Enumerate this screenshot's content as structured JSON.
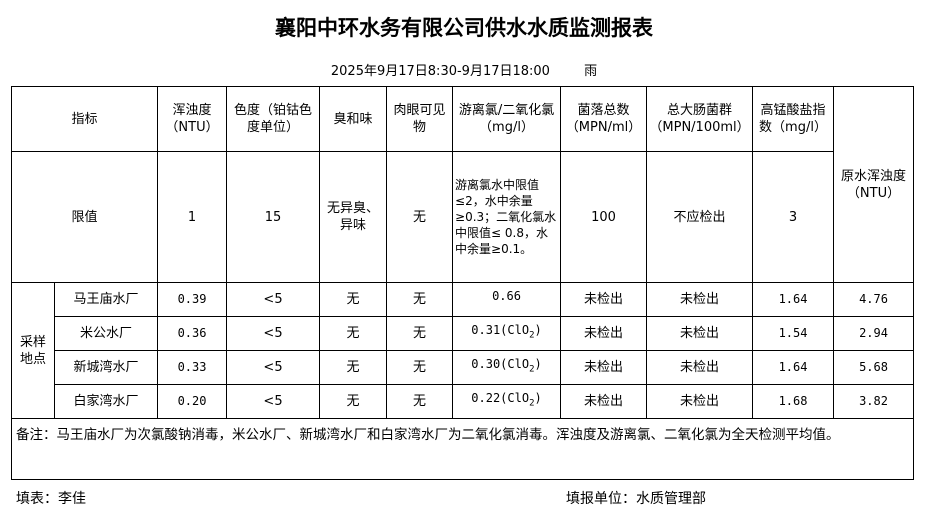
{
  "title": "襄阳中环水务有限公司供水水质监测报表",
  "subtitle": {
    "time": "2025年9月17日8:30-9月17日18:00",
    "weather": "雨"
  },
  "headers": {
    "indicator": "指标",
    "turbidity": "浑浊度（NTU）",
    "color": "色度（铂钴色度单位）",
    "odor": "臭和味",
    "visible": "肉眼可见物",
    "chlorine": "游离氯/二氧化氯（mg/l）",
    "colony": "菌落总数（MPN/ml）",
    "coliform": "总大肠菌群（MPN/100ml）",
    "permanganate": "高锰酸盐指数（mg/l）",
    "raw_turbidity": "原水浑浊度（NTU）"
  },
  "limits": {
    "label": "限值",
    "turbidity": "1",
    "color": "15",
    "odor": "无异臭、异味",
    "visible": "无",
    "chlorine": "游离氯水中限值 ≤2，水中余量≥0.3；二氧化氯水中限值≤ 0.8，水中余量≥0.1。",
    "colony": "100",
    "coliform": "不应检出",
    "permanganate": "3"
  },
  "sampling_label": "采样地点",
  "rows": [
    {
      "site": "马王庙水厂",
      "turbidity": "0.39",
      "color": "<5",
      "odor": "无",
      "visible": "无",
      "chlorine": "0.66",
      "chlorine_sub": "",
      "chlorine_end": "",
      "colony": "未检出",
      "coliform": "未检出",
      "permanganate": "1.64",
      "raw_turbidity": "4.76"
    },
    {
      "site": "米公水厂",
      "turbidity": "0.36",
      "color": "<5",
      "odor": "无",
      "visible": "无",
      "chlorine": "0.31(ClO",
      "chlorine_sub": "2",
      "chlorine_end": ")",
      "colony": "未检出",
      "coliform": "未检出",
      "permanganate": "1.54",
      "raw_turbidity": "2.94"
    },
    {
      "site": "新城湾水厂",
      "turbidity": "0.33",
      "color": "<5",
      "odor": "无",
      "visible": "无",
      "chlorine": "0.30(ClO",
      "chlorine_sub": "2",
      "chlorine_end": ")",
      "colony": "未检出",
      "coliform": "未检出",
      "permanganate": "1.64",
      "raw_turbidity": "5.68"
    },
    {
      "site": "白家湾水厂",
      "turbidity": "0.20",
      "color": "<5",
      "odor": "无",
      "visible": "无",
      "chlorine": "0.22(ClO",
      "chlorine_sub": "2",
      "chlorine_end": ")",
      "colony": "未检出",
      "coliform": "未检出",
      "permanganate": "1.68",
      "raw_turbidity": "3.82"
    }
  ],
  "note": "备注：马王庙水厂为次氯酸钠消毒，米公水厂、新城湾水厂和白家湾水厂为二氧化氯消毒。浑浊度及游离氯、二氧化氯为全天检测平均值。",
  "footer": {
    "filler": "填表：李佳",
    "unit": "填报单位：水质管理部"
  }
}
